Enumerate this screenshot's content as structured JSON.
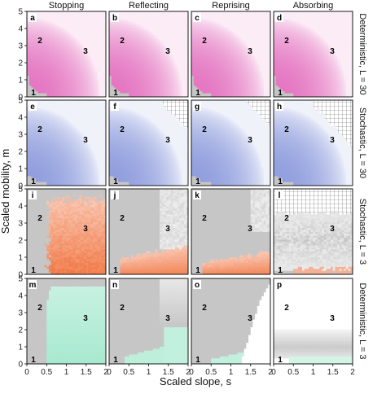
{
  "chart_data": {
    "type": "heatmap",
    "column_titles": [
      "Stopping",
      "Reflecting",
      "Reprising",
      "Absorbing"
    ],
    "row_labels": [
      "Deterministic, L = 30",
      "Stochastic, L = 30",
      "Stochastic, L = 3",
      "Deterministic, L = 3"
    ],
    "xlabel": "Scaled slope, s",
    "ylabel": "Scaled mobility, m",
    "xlim": [
      0,
      2
    ],
    "ylim": [
      0,
      5
    ],
    "x_ticks": [
      "0",
      "0.5",
      "1",
      "1.5",
      "2"
    ],
    "y_ticks": [
      "0",
      "1",
      "2",
      "3",
      "4",
      "5"
    ],
    "row_colors": [
      "#e060b8",
      "#7f8fd8",
      "#f0703a",
      "#50d4a0"
    ],
    "region_labels": [
      "1",
      "2",
      "3"
    ],
    "panels": [
      {
        "letter": "a",
        "row": 0,
        "col": 0,
        "model": "det",
        "L": 30,
        "boundary": "stopping"
      },
      {
        "letter": "b",
        "row": 0,
        "col": 1,
        "model": "det",
        "L": 30,
        "boundary": "reflecting"
      },
      {
        "letter": "c",
        "row": 0,
        "col": 2,
        "model": "det",
        "L": 30,
        "boundary": "reprising"
      },
      {
        "letter": "d",
        "row": 0,
        "col": 3,
        "model": "det",
        "L": 30,
        "boundary": "absorbing"
      },
      {
        "letter": "e",
        "row": 1,
        "col": 0,
        "model": "sto",
        "L": 30,
        "boundary": "stopping"
      },
      {
        "letter": "f",
        "row": 1,
        "col": 1,
        "model": "sto",
        "L": 30,
        "boundary": "reflecting"
      },
      {
        "letter": "g",
        "row": 1,
        "col": 2,
        "model": "sto",
        "L": 30,
        "boundary": "reprising"
      },
      {
        "letter": "h",
        "row": 1,
        "col": 3,
        "model": "sto",
        "L": 30,
        "boundary": "absorbing"
      },
      {
        "letter": "i",
        "row": 2,
        "col": 0,
        "model": "sto",
        "L": 3,
        "boundary": "stopping"
      },
      {
        "letter": "j",
        "row": 2,
        "col": 1,
        "model": "sto",
        "L": 3,
        "boundary": "reflecting"
      },
      {
        "letter": "k",
        "row": 2,
        "col": 2,
        "model": "sto",
        "L": 3,
        "boundary": "reprising"
      },
      {
        "letter": "l",
        "row": 2,
        "col": 3,
        "model": "sto",
        "L": 3,
        "boundary": "absorbing"
      },
      {
        "letter": "m",
        "row": 3,
        "col": 0,
        "model": "det",
        "L": 3,
        "boundary": "stopping"
      },
      {
        "letter": "n",
        "row": 3,
        "col": 1,
        "model": "det",
        "L": 3,
        "boundary": "reflecting"
      },
      {
        "letter": "o",
        "row": 3,
        "col": 2,
        "model": "det",
        "L": 3,
        "boundary": "reprising"
      },
      {
        "letter": "p",
        "row": 3,
        "col": 3,
        "model": "det",
        "L": 3,
        "boundary": "absorbing"
      }
    ]
  }
}
